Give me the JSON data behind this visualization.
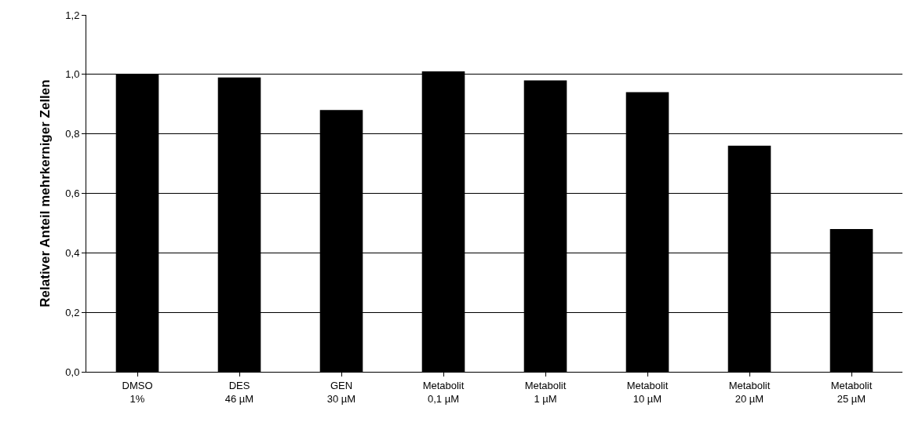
{
  "chart_data": {
    "type": "bar",
    "ylabel": "Relativer Anteil mehrkerniger Zellen",
    "categories": [
      "DMSO\n1%",
      "DES\n46 µM",
      "GEN\n30 µM",
      "Metabolit\n0,1 µM",
      "Metabolit\n1 µM",
      "Metabolit\n10 µM",
      "Metabolit\n20 µM",
      "Metabolit\n25 µM"
    ],
    "values": [
      1.0,
      0.99,
      0.88,
      1.01,
      0.98,
      0.94,
      0.76,
      0.48
    ],
    "color": "#000000",
    "ylim": [
      0,
      1.2
    ],
    "yticks": [
      {
        "value": 0,
        "label": "0,0"
      },
      {
        "value": 0.2,
        "label": "0,2"
      },
      {
        "value": 0.4,
        "label": "0,4"
      },
      {
        "value": 0.6,
        "label": "0,6"
      },
      {
        "value": 0.8,
        "label": "0,8"
      },
      {
        "value": 1.0,
        "label": "1,0"
      },
      {
        "value": 1.2,
        "label": "1,2"
      }
    ],
    "grid": "y"
  }
}
